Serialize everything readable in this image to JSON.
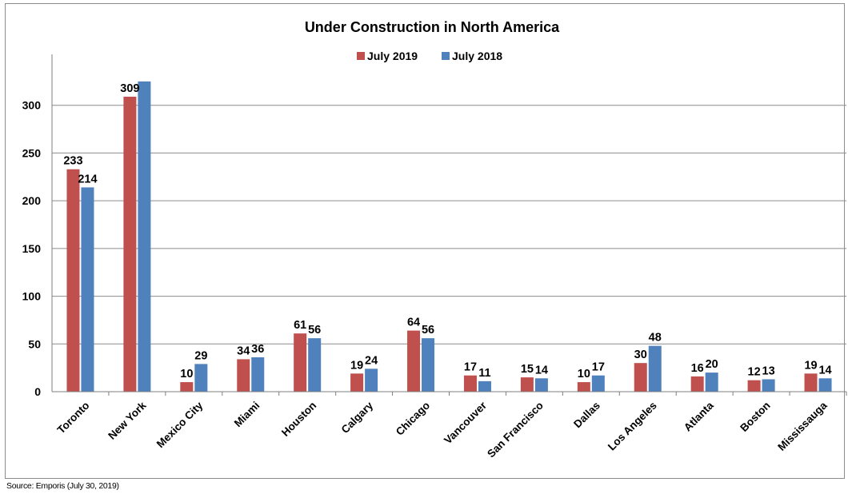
{
  "chart_data": {
    "type": "bar",
    "title": "Under Construction in North America",
    "categories": [
      "Toronto",
      "New York",
      "Mexico City",
      "Miami",
      "Houston",
      "Calgary",
      "Chicago",
      "Vancouver",
      "San Francisco",
      "Dallas",
      "Los Angeles",
      "Atlanta",
      "Boston",
      "Mississauga"
    ],
    "series": [
      {
        "name": "July 2019",
        "color": "#c0504d",
        "values": [
          233,
          309,
          10,
          34,
          61,
          19,
          64,
          17,
          15,
          10,
          30,
          16,
          12,
          19
        ],
        "labels": [
          "233",
          "309",
          "10",
          "34",
          "61",
          "19",
          "64",
          "17",
          "15",
          "10",
          "30",
          "16",
          "12",
          "19"
        ]
      },
      {
        "name": "July 2018",
        "color": "#4f81bd",
        "values": [
          214,
          325,
          29,
          36,
          56,
          24,
          56,
          11,
          14,
          17,
          48,
          20,
          13,
          14
        ],
        "labels": [
          "214",
          "",
          "29",
          "36",
          "56",
          "24",
          "56",
          "11",
          "14",
          "17",
          "48",
          "20",
          "13",
          "14"
        ]
      }
    ],
    "xlabel": "",
    "ylabel": "",
    "ylim": [
      0,
      350
    ],
    "yticks": [
      0,
      50,
      100,
      150,
      200,
      250,
      300
    ],
    "grid": true,
    "legend_position": "top"
  },
  "footer": {
    "source": "Source: Emporis (July 30, 2019)"
  }
}
